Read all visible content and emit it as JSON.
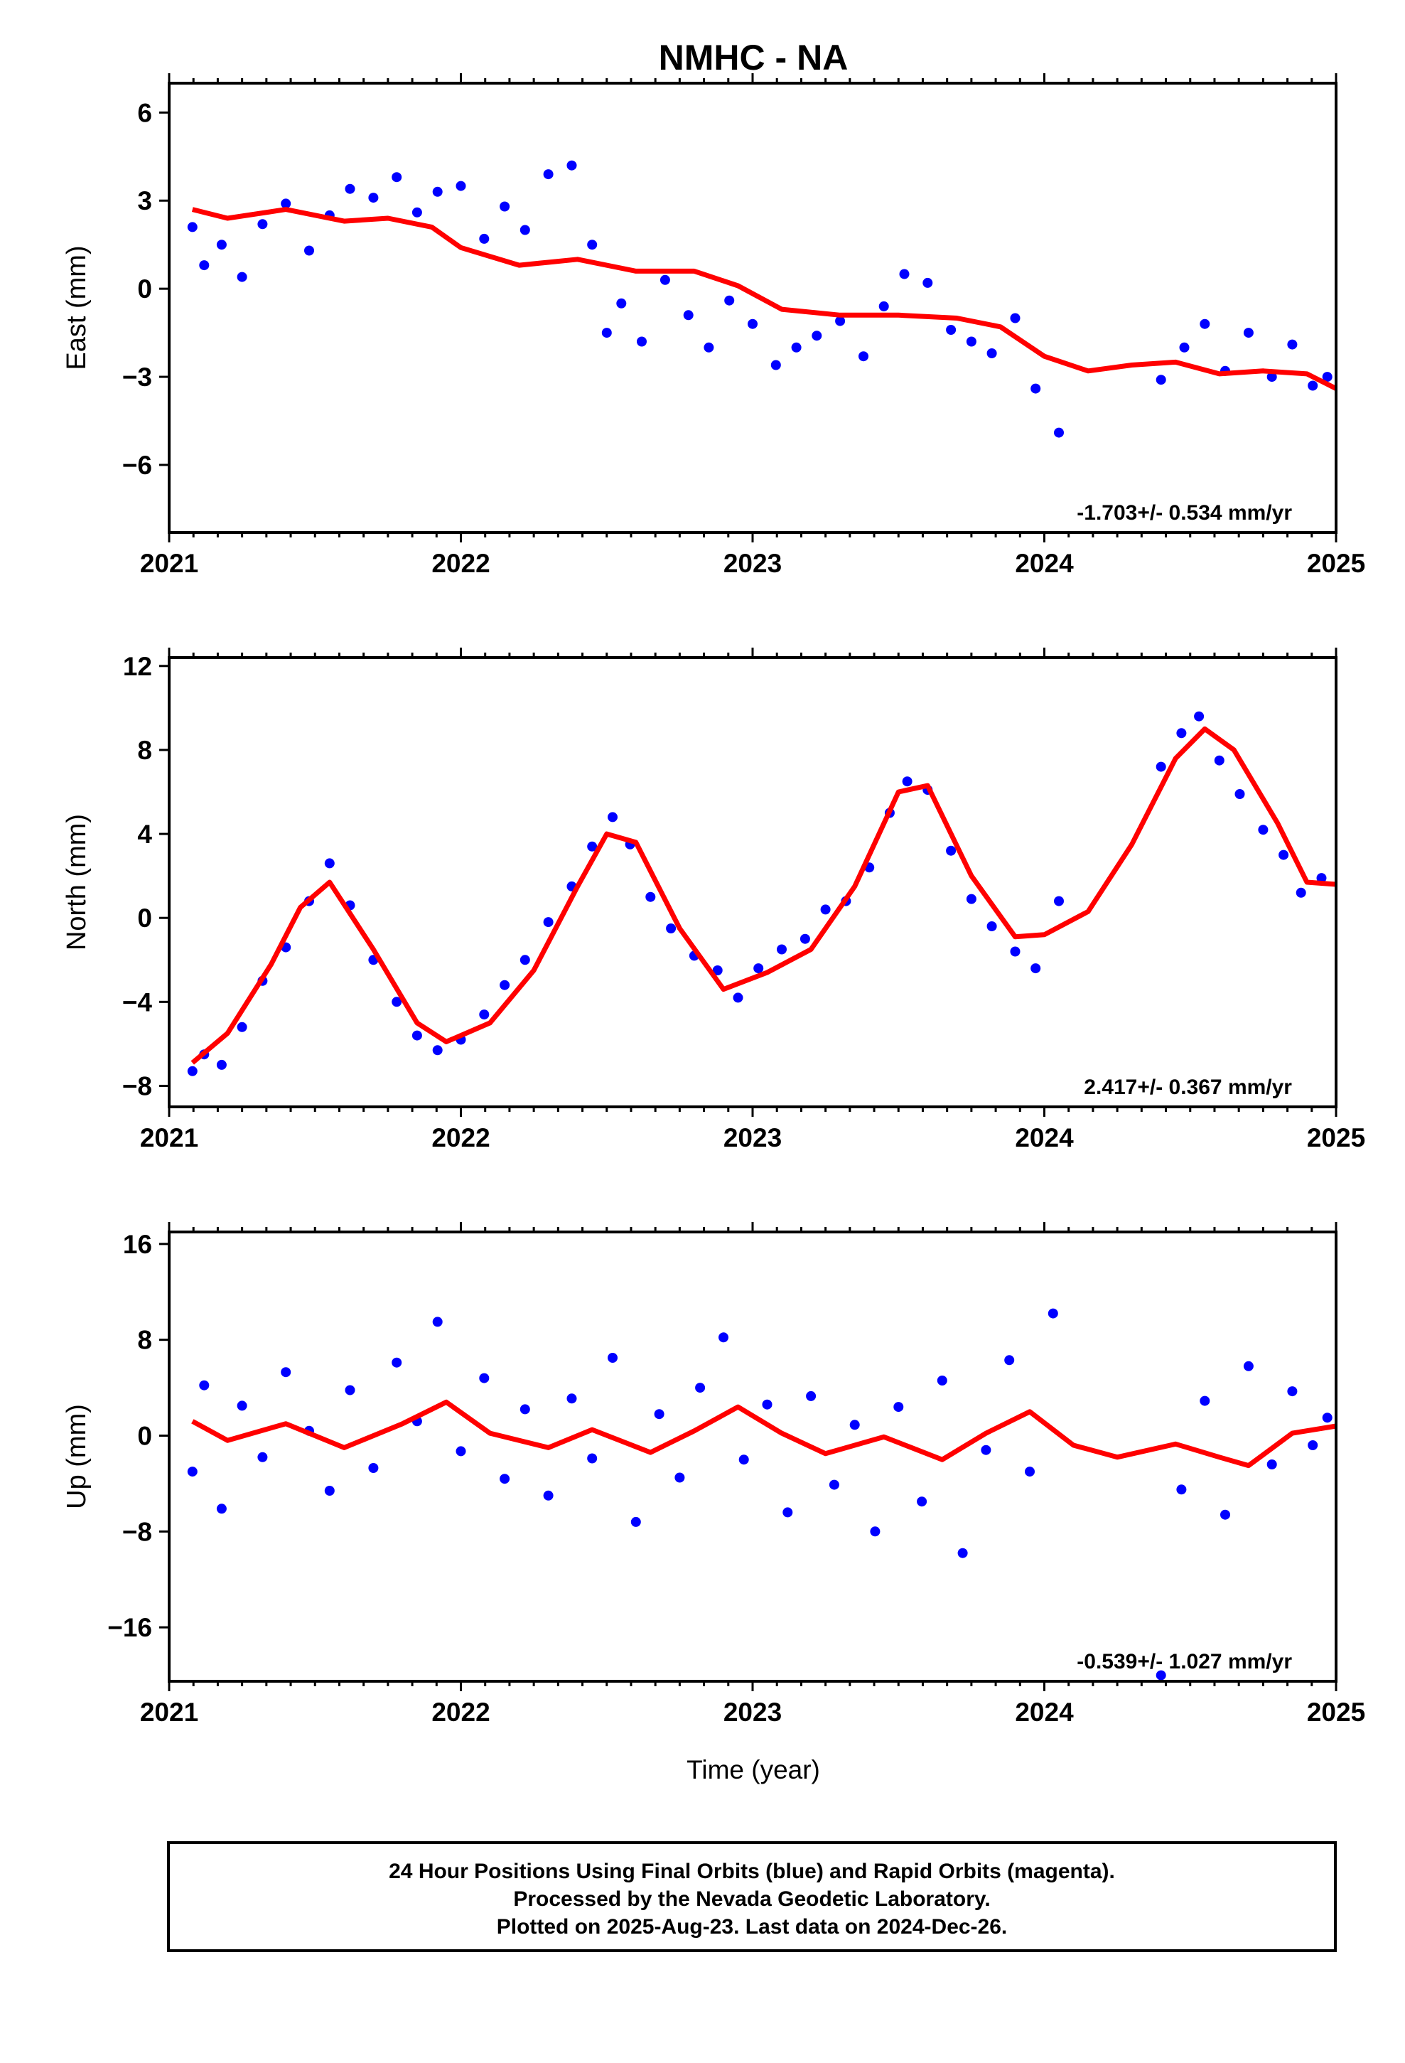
{
  "chart_data": [
    {
      "type": "scatter",
      "title": "NMHC - NA",
      "xlabel": "",
      "ylabel": "East (mm)",
      "rate_label": "-1.703+/- 0.534 mm/yr",
      "xlim": [
        2021,
        2025
      ],
      "ylim": [
        -8.3,
        7.0
      ],
      "xticks": [
        "2021",
        "2022",
        "2023",
        "2024",
        "2025"
      ],
      "yticks": [
        "6",
        "3",
        "0",
        "-3",
        "-6"
      ],
      "grid": false,
      "marker_color": "#0000ff",
      "line_color": "#ff0000",
      "series": [
        {
          "kind": "scatter",
          "x": [
            2021.08,
            2021.12,
            2021.18,
            2021.25,
            2021.32,
            2021.4,
            2021.48,
            2021.55,
            2021.62,
            2021.7,
            2021.78,
            2021.85,
            2021.92,
            2022.0,
            2022.08,
            2022.15,
            2022.22,
            2022.3,
            2022.38,
            2022.45,
            2022.5,
            2022.55,
            2022.62,
            2022.7,
            2022.78,
            2022.85,
            2022.92,
            2023.0,
            2023.08,
            2023.15,
            2023.22,
            2023.3,
            2023.38,
            2023.45,
            2023.52,
            2023.6,
            2023.68,
            2023.75,
            2023.82,
            2023.9,
            2023.97,
            2024.05,
            2024.4,
            2024.48,
            2024.55,
            2024.62,
            2024.7,
            2024.78,
            2024.85,
            2024.92,
            2024.97
          ],
          "y": [
            2.1,
            0.8,
            1.5,
            0.4,
            2.2,
            2.9,
            1.3,
            2.5,
            3.4,
            3.1,
            3.8,
            2.6,
            3.3,
            3.5,
            1.7,
            2.8,
            2.0,
            3.9,
            4.2,
            1.5,
            -1.5,
            -0.5,
            -1.8,
            0.3,
            -0.9,
            -2.0,
            -0.4,
            -1.2,
            -2.6,
            -2.0,
            -1.6,
            -1.1,
            -2.3,
            -0.6,
            0.5,
            0.2,
            -1.4,
            -1.8,
            -2.2,
            -1.0,
            -3.4,
            -4.9,
            -3.1,
            -2.0,
            -1.2,
            -2.8,
            -1.5,
            -3.0,
            -1.9,
            -3.3,
            -3.0
          ]
        },
        {
          "kind": "line",
          "x": [
            2021.08,
            2021.2,
            2021.4,
            2021.6,
            2021.75,
            2021.9,
            2022.0,
            2022.2,
            2022.4,
            2022.6,
            2022.8,
            2022.95,
            2023.1,
            2023.3,
            2023.5,
            2023.7,
            2023.85,
            2024.0,
            2024.15,
            2024.3,
            2024.45,
            2024.6,
            2024.75,
            2024.9,
            2025.0
          ],
          "y": [
            2.7,
            2.4,
            2.7,
            2.3,
            2.4,
            2.1,
            1.4,
            0.8,
            1.0,
            0.6,
            0.6,
            0.1,
            -0.7,
            -0.9,
            -0.9,
            -1.0,
            -1.3,
            -2.3,
            -2.8,
            -2.6,
            -2.5,
            -2.9,
            -2.8,
            -2.9,
            -3.4
          ]
        }
      ]
    },
    {
      "type": "scatter",
      "title": "",
      "xlabel": "",
      "ylabel": "North (mm)",
      "rate_label": "2.417+/- 0.367 mm/yr",
      "xlim": [
        2021,
        2025
      ],
      "ylim": [
        -9.0,
        12.4
      ],
      "xticks": [
        "2021",
        "2022",
        "2023",
        "2024",
        "2025"
      ],
      "yticks": [
        "12",
        "8",
        "4",
        "0",
        "-4",
        "-8"
      ],
      "grid": false,
      "marker_color": "#0000ff",
      "line_color": "#ff0000",
      "series": [
        {
          "kind": "scatter",
          "x": [
            2021.08,
            2021.12,
            2021.18,
            2021.25,
            2021.32,
            2021.4,
            2021.48,
            2021.55,
            2021.62,
            2021.7,
            2021.78,
            2021.85,
            2021.92,
            2022.0,
            2022.08,
            2022.15,
            2022.22,
            2022.3,
            2022.38,
            2022.45,
            2022.52,
            2022.58,
            2022.65,
            2022.72,
            2022.8,
            2022.88,
            2022.95,
            2023.02,
            2023.1,
            2023.18,
            2023.25,
            2023.32,
            2023.4,
            2023.47,
            2023.53,
            2023.6,
            2023.68,
            2023.75,
            2023.82,
            2023.9,
            2023.97,
            2024.05,
            2024.4,
            2024.47,
            2024.53,
            2024.6,
            2024.67,
            2024.75,
            2024.82,
            2024.88,
            2024.95
          ],
          "y": [
            -7.3,
            -6.5,
            -7.0,
            -5.2,
            -3.0,
            -1.4,
            0.8,
            2.6,
            0.6,
            -2.0,
            -4.0,
            -5.6,
            -6.3,
            -5.8,
            -4.6,
            -3.2,
            -2.0,
            -0.2,
            1.5,
            3.4,
            4.8,
            3.5,
            1.0,
            -0.5,
            -1.8,
            -2.5,
            -3.8,
            -2.4,
            -1.5,
            -1.0,
            0.4,
            0.8,
            2.4,
            5.0,
            6.5,
            6.1,
            3.2,
            0.9,
            -0.4,
            -1.6,
            -2.4,
            0.8,
            7.2,
            8.8,
            9.6,
            7.5,
            5.9,
            4.2,
            3.0,
            1.2,
            1.9
          ]
        },
        {
          "kind": "line",
          "x": [
            2021.08,
            2021.2,
            2021.35,
            2021.45,
            2021.55,
            2021.7,
            2021.85,
            2021.95,
            2022.1,
            2022.25,
            2022.4,
            2022.5,
            2022.6,
            2022.75,
            2022.9,
            2023.05,
            2023.2,
            2023.35,
            2023.5,
            2023.6,
            2023.75,
            2023.9,
            2024.0,
            2024.15,
            2024.3,
            2024.45,
            2024.55,
            2024.65,
            2024.8,
            2024.9,
            2025.0
          ],
          "y": [
            -6.9,
            -5.5,
            -2.2,
            0.5,
            1.7,
            -1.5,
            -5.0,
            -5.9,
            -5.0,
            -2.5,
            1.5,
            4.0,
            3.6,
            -0.5,
            -3.4,
            -2.6,
            -1.5,
            1.5,
            6.0,
            6.3,
            2.0,
            -0.9,
            -0.8,
            0.3,
            3.5,
            7.6,
            9.0,
            8.0,
            4.5,
            1.7,
            1.6
          ]
        }
      ]
    },
    {
      "type": "scatter",
      "title": "",
      "xlabel": "Time (year)",
      "ylabel": "Up (mm)",
      "rate_label": "-0.539+/- 1.027 mm/yr",
      "xlim": [
        2021,
        2025
      ],
      "ylim": [
        -20.5,
        17.0
      ],
      "xticks": [
        "2021",
        "2022",
        "2023",
        "2024",
        "2025"
      ],
      "yticks": [
        "16",
        "8",
        "0",
        "-8",
        "-16"
      ],
      "grid": false,
      "marker_color": "#0000ff",
      "line_color": "#ff0000",
      "series": [
        {
          "kind": "scatter",
          "x": [
            2021.08,
            2021.12,
            2021.18,
            2021.25,
            2021.32,
            2021.4,
            2021.48,
            2021.55,
            2021.62,
            2021.7,
            2021.78,
            2021.85,
            2021.92,
            2022.0,
            2022.08,
            2022.15,
            2022.22,
            2022.3,
            2022.38,
            2022.45,
            2022.52,
            2022.6,
            2022.68,
            2022.75,
            2022.82,
            2022.9,
            2022.97,
            2023.05,
            2023.12,
            2023.2,
            2023.28,
            2023.35,
            2023.42,
            2023.5,
            2023.58,
            2023.65,
            2023.72,
            2023.8,
            2023.88,
            2023.95,
            2024.03,
            2024.4,
            2024.47,
            2024.55,
            2024.62,
            2024.7,
            2024.78,
            2024.85,
            2024.92,
            2024.97
          ],
          "y": [
            -3.0,
            4.2,
            -6.1,
            2.5,
            -1.8,
            5.3,
            0.4,
            -4.6,
            3.8,
            -2.7,
            6.1,
            1.2,
            9.5,
            -1.3,
            4.8,
            -3.6,
            2.2,
            -5.0,
            3.1,
            -1.9,
            6.5,
            -7.2,
            1.8,
            -3.5,
            4.0,
            8.2,
            -2.0,
            2.6,
            -6.4,
            3.3,
            -4.1,
            0.9,
            -8.0,
            2.4,
            -5.5,
            4.6,
            -9.8,
            -1.2,
            6.3,
            -3.0,
            10.2,
            -20.0,
            -4.5,
            2.9,
            -6.6,
            5.8,
            -2.4,
            3.7,
            -0.8,
            1.5
          ]
        },
        {
          "kind": "line",
          "x": [
            2021.08,
            2021.2,
            2021.4,
            2021.6,
            2021.8,
            2021.95,
            2022.1,
            2022.3,
            2022.45,
            2022.65,
            2022.8,
            2022.95,
            2023.1,
            2023.25,
            2023.45,
            2023.65,
            2023.8,
            2023.95,
            2024.1,
            2024.25,
            2024.45,
            2024.6,
            2024.7,
            2024.85,
            2025.0
          ],
          "y": [
            1.2,
            -0.4,
            1.0,
            -1.0,
            1.0,
            2.8,
            0.2,
            -1.0,
            0.5,
            -1.4,
            0.4,
            2.4,
            0.2,
            -1.5,
            -0.1,
            -2.0,
            0.2,
            2.0,
            -0.8,
            -1.8,
            -0.7,
            -1.8,
            -2.5,
            0.2,
            0.8
          ]
        }
      ]
    }
  ],
  "footer": {
    "line1": "24 Hour Positions Using Final Orbits (blue) and Rapid Orbits (magenta).",
    "line2": "Processed by the Nevada Geodetic Laboratory.",
    "line3": "Plotted on 2025-Aug-23. Last data on 2024-Dec-26."
  }
}
